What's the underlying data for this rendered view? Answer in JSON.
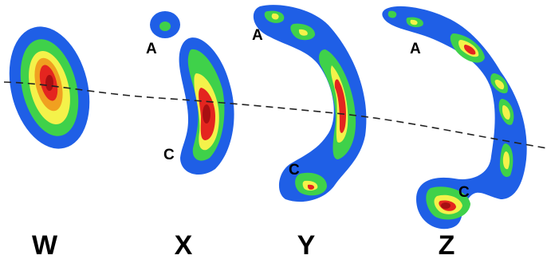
{
  "panels": [
    {
      "id": "W",
      "label": "W"
    },
    {
      "id": "X",
      "label": "X",
      "marker_a": "A",
      "marker_c": "C"
    },
    {
      "id": "Y",
      "label": "Y",
      "marker_a": "A",
      "marker_c": "C"
    },
    {
      "id": "Z",
      "label": "Z",
      "marker_a": "A",
      "marker_c": "C"
    }
  ],
  "colors": {
    "blue": "#1f5fe6",
    "green": "#3fd14a",
    "yellow": "#f4f24a",
    "orange": "#f0a020",
    "red": "#e4251f",
    "dark_red": "#a80f12",
    "dashed_line": "#222222"
  }
}
